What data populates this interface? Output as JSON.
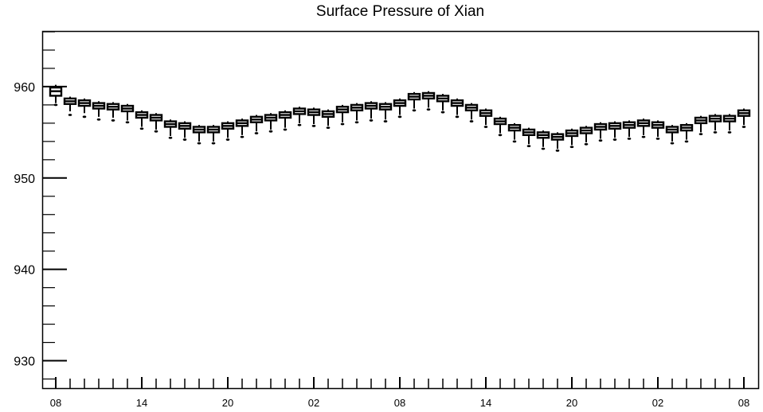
{
  "chart_data": {
    "type": "box",
    "title": "Surface Pressure of Xian",
    "xlabel": "",
    "ylabel": "",
    "ylim": [
      927,
      966
    ],
    "yticks": [
      930,
      940,
      950,
      960
    ],
    "xtick_labels": [
      "08",
      "14",
      "20",
      "02",
      "08",
      "14",
      "20",
      "02",
      "08"
    ],
    "grid": false,
    "legend": "none",
    "x": [
      0,
      1,
      2,
      3,
      4,
      5,
      6,
      7,
      8,
      9,
      10,
      11,
      12,
      13,
      14,
      15,
      16,
      17,
      18,
      19,
      20,
      21,
      22,
      23,
      24,
      25,
      26,
      27,
      28,
      29,
      30,
      31,
      32,
      33,
      34,
      35,
      36,
      37,
      38,
      39,
      40,
      41,
      42,
      43,
      44,
      45,
      46,
      47,
      48
    ],
    "series": [
      {
        "median": [
          959.5,
          958.4,
          958.2,
          957.9,
          957.8,
          957.6,
          956.9,
          956.6,
          955.9,
          955.7,
          955.3,
          955.3,
          955.7,
          956.0,
          956.4,
          956.6,
          956.9,
          957.3,
          957.2,
          957.0,
          957.5,
          957.7,
          957.9,
          957.8,
          958.2,
          958.9,
          959.0,
          958.7,
          958.2,
          957.7,
          957.1,
          956.2,
          955.5,
          955.0,
          954.7,
          954.5,
          954.9,
          955.2,
          955.6,
          955.7,
          955.8,
          956.0,
          955.8,
          955.3,
          955.5,
          956.3,
          956.5,
          956.5,
          957.1
        ],
        "q1": [
          959.0,
          958.1,
          957.9,
          957.6,
          957.5,
          957.3,
          956.6,
          956.3,
          955.6,
          955.4,
          955.0,
          955.0,
          955.4,
          955.7,
          956.1,
          956.3,
          956.6,
          957.0,
          956.9,
          956.7,
          957.2,
          957.4,
          957.6,
          957.5,
          957.9,
          958.6,
          958.7,
          958.4,
          957.9,
          957.4,
          956.8,
          955.9,
          955.2,
          954.7,
          954.4,
          954.2,
          954.6,
          954.9,
          955.3,
          955.4,
          955.5,
          955.7,
          955.5,
          955.0,
          955.2,
          956.0,
          956.2,
          956.2,
          956.8
        ],
        "q3": [
          959.9,
          958.7,
          958.5,
          958.2,
          958.1,
          957.9,
          957.2,
          956.9,
          956.2,
          956.0,
          955.6,
          955.6,
          956.0,
          956.3,
          956.7,
          956.9,
          957.2,
          957.6,
          957.5,
          957.3,
          957.8,
          958.0,
          958.2,
          958.1,
          958.5,
          959.2,
          959.3,
          959.0,
          958.5,
          958.0,
          957.4,
          956.5,
          955.8,
          955.3,
          955.0,
          954.8,
          955.2,
          955.5,
          955.9,
          956.0,
          956.1,
          956.3,
          956.1,
          955.6,
          955.8,
          956.6,
          956.8,
          956.8,
          957.4
        ],
        "whisker_low": [
          958.2,
          957.3,
          957.1,
          956.7,
          956.6,
          956.3,
          955.6,
          955.3,
          954.6,
          954.4,
          954.0,
          954.0,
          954.4,
          954.7,
          955.1,
          955.3,
          955.5,
          956.0,
          955.9,
          955.7,
          956.1,
          956.3,
          956.5,
          956.4,
          956.9,
          957.6,
          957.7,
          957.4,
          956.9,
          956.4,
          955.8,
          954.9,
          954.2,
          953.7,
          953.4,
          953.2,
          953.6,
          953.9,
          954.3,
          954.4,
          954.5,
          954.7,
          954.5,
          954.0,
          954.2,
          955.0,
          955.2,
          955.2,
          955.8
        ],
        "whisker_high": [
          960.2,
          958.9,
          958.7,
          958.4,
          958.3,
          958.1,
          957.4,
          957.1,
          956.4,
          956.2,
          955.8,
          955.8,
          956.2,
          956.5,
          956.9,
          957.1,
          957.4,
          957.8,
          957.7,
          957.5,
          958.0,
          958.2,
          958.4,
          958.3,
          958.7,
          959.4,
          959.5,
          959.2,
          958.7,
          958.2,
          957.6,
          956.7,
          956.0,
          955.5,
          955.2,
          955.0,
          955.4,
          955.7,
          956.1,
          956.2,
          956.3,
          956.5,
          956.3,
          955.8,
          956.0,
          956.8,
          957.0,
          957.0,
          957.6
        ],
        "outlier_low": [
          958.0,
          956.9,
          956.7,
          956.4,
          956.3,
          956.1,
          955.4,
          955.1,
          954.4,
          954.2,
          953.8,
          953.8,
          954.2,
          954.5,
          954.9,
          955.1,
          955.3,
          955.8,
          955.7,
          955.5,
          955.9,
          956.1,
          956.3,
          956.2,
          956.7,
          957.4,
          957.5,
          957.2,
          956.7,
          956.2,
          955.6,
          954.7,
          954.0,
          953.5,
          953.2,
          953.0,
          953.4,
          953.7,
          954.1,
          954.2,
          954.3,
          954.5,
          954.3,
          953.8,
          954.0,
          954.8,
          955.0,
          955.0,
          955.6
        ]
      }
    ]
  }
}
